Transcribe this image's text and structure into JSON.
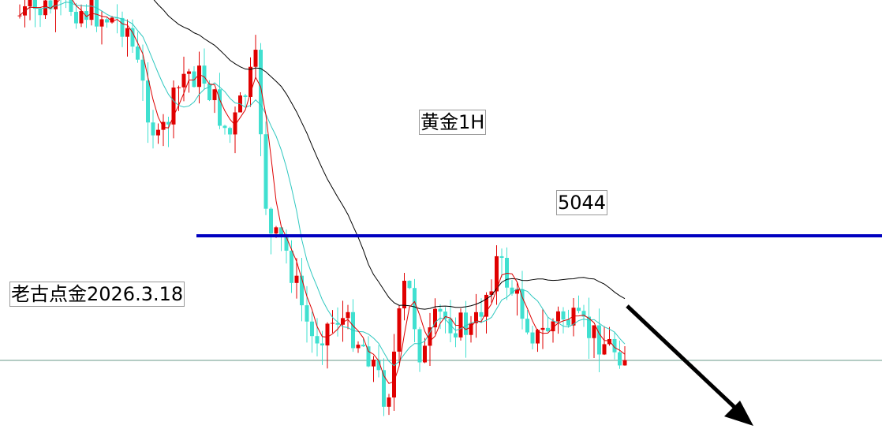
{
  "annotations": {
    "title": "黄金1H",
    "level": "5044",
    "author": "老古点金2026.3.18"
  }
}
